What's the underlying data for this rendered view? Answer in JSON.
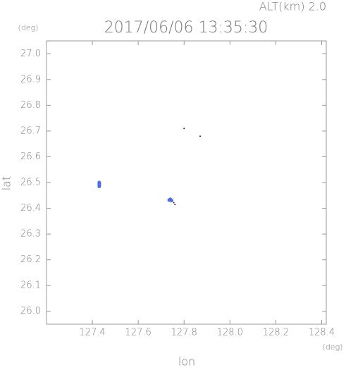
{
  "chart_data": {
    "type": "scatter",
    "title": "2017/06/06 13:35:30",
    "annotation": "ALT(km) 2.0",
    "y_unit": "(deg)",
    "x_unit": "(deg)",
    "x_label": "lon",
    "y_label": "lat",
    "xlim": [
      127.2,
      128.42
    ],
    "ylim": [
      25.95,
      27.05
    ],
    "xticks": [
      127.4,
      127.6,
      127.8,
      {
        "value": 128.0,
        "label": "128.0"
      },
      128.2,
      128.4
    ],
    "yticks": [
      {
        "value": 26.0,
        "label": "26.0"
      },
      26.1,
      26.2,
      26.3,
      26.4,
      26.5,
      26.6,
      26.7,
      26.8,
      26.9,
      {
        "value": 27.0,
        "label": "27.0"
      }
    ],
    "series": [
      {
        "color": "#4a6cf0",
        "x": [
          127.43,
          127.43,
          127.43,
          127.43,
          127.74,
          127.745,
          127.735
        ],
        "values": [
          26.5,
          26.495,
          26.49,
          26.485,
          26.435,
          26.43,
          26.432
        ]
      },
      {
        "color": "#222222",
        "x": [
          127.8,
          127.87,
          127.755,
          127.76
        ],
        "values": [
          26.71,
          26.68,
          26.422,
          26.415
        ]
      }
    ]
  }
}
